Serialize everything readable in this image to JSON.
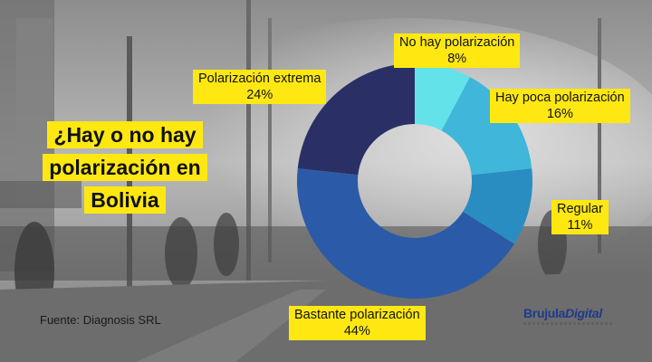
{
  "headline": {
    "lines": [
      "¿Hay o no hay",
      "polarización en",
      "Bolivia"
    ]
  },
  "source": "Fuente: Diagnosis SRL",
  "brand": {
    "part1": "Brujula",
    "part2": "Digital"
  },
  "chart_data": {
    "type": "pie",
    "subtype": "donut",
    "title": "¿Hay o no hay polarización en Bolivia",
    "slices": [
      {
        "label": "No hay polarización",
        "value": 8,
        "display": "8%",
        "color": "#63e2ea"
      },
      {
        "label": "Hay poca polarización",
        "value": 16,
        "display": "16%",
        "color": "#3fb6da"
      },
      {
        "label": "Regular",
        "value": 11,
        "display": "11%",
        "color": "#2a8dc2"
      },
      {
        "label": "Bastante polarización",
        "value": 44,
        "display": "44%",
        "color": "#2b5ba8"
      },
      {
        "label": "Polarización extrema",
        "value": 24,
        "display": "24%",
        "color": "#2a3066"
      }
    ],
    "start_angle_deg": 0,
    "direction": "clockwise"
  }
}
